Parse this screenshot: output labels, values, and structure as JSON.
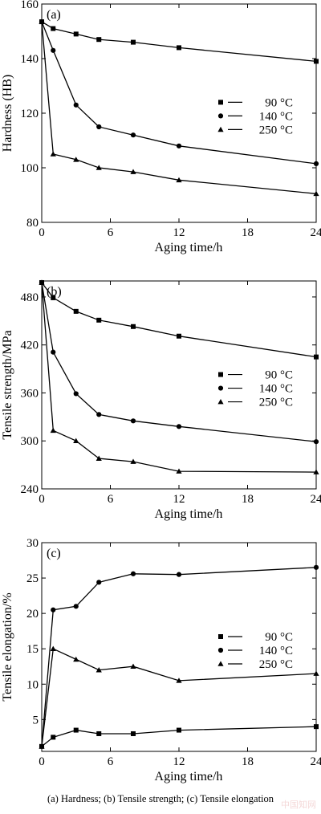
{
  "chart_data": [
    {
      "type": "line",
      "panel_label": "(a)",
      "xlabel": "Aging time/h",
      "ylabel": "Hardness (HB)",
      "xlim": [
        0,
        24
      ],
      "ylim": [
        80,
        160
      ],
      "xticks": [
        0,
        6,
        12,
        18,
        24
      ],
      "yticks": [
        80,
        100,
        120,
        140,
        160
      ],
      "grid": false,
      "legend_position": "right-middle",
      "series": [
        {
          "name": "90 °C",
          "marker": "square",
          "x": [
            0,
            1,
            3,
            5,
            8,
            12,
            24
          ],
          "values": [
            153.5,
            151,
            149,
            147,
            146,
            144,
            139
          ]
        },
        {
          "name": "140 °C",
          "marker": "circle",
          "x": [
            0,
            1,
            3,
            5,
            8,
            12,
            24
          ],
          "values": [
            153.5,
            143,
            123,
            115,
            112,
            108,
            101.5
          ]
        },
        {
          "name": "250 °C",
          "marker": "triangle",
          "x": [
            0,
            1,
            3,
            5,
            8,
            12,
            24
          ],
          "values": [
            153.5,
            105,
            103,
            100,
            98.5,
            95.5,
            90.5
          ]
        }
      ]
    },
    {
      "type": "line",
      "panel_label": "(b)",
      "xlabel": "Aging time/h",
      "ylabel": "Tensile strength/MPa",
      "xlim": [
        0,
        24
      ],
      "ylim": [
        240,
        500
      ],
      "xticks": [
        0,
        6,
        12,
        18,
        24
      ],
      "yticks": [
        240,
        300,
        360,
        420,
        480
      ],
      "grid": false,
      "legend_position": "right-middle",
      "series": [
        {
          "name": "90 °C",
          "marker": "square",
          "x": [
            0,
            1,
            3,
            5,
            8,
            12,
            24
          ],
          "values": [
            498,
            479,
            462,
            451,
            443,
            431,
            405
          ]
        },
        {
          "name": "140 °C",
          "marker": "circle",
          "x": [
            0,
            1,
            3,
            5,
            8,
            12,
            24
          ],
          "values": [
            498,
            411,
            359,
            333,
            325,
            318,
            299
          ]
        },
        {
          "name": "250 °C",
          "marker": "triangle",
          "x": [
            0,
            1,
            3,
            5,
            8,
            12,
            24
          ],
          "values": [
            498,
            313,
            300,
            278,
            274,
            262,
            261
          ]
        }
      ]
    },
    {
      "type": "line",
      "panel_label": "(c)",
      "xlabel": "Aging time/h",
      "ylabel": "Tensile elongation/%",
      "xlim": [
        0,
        24
      ],
      "ylim": [
        0.5,
        30
      ],
      "xticks": [
        0,
        6,
        12,
        18,
        24
      ],
      "yticks": [
        5,
        10,
        15,
        20,
        25,
        30
      ],
      "grid": false,
      "legend_position": "right-middle",
      "series": [
        {
          "name": "90 °C",
          "marker": "square",
          "x": [
            0,
            1,
            3,
            5,
            8,
            12,
            24
          ],
          "values": [
            1.2,
            2.5,
            3.5,
            3.0,
            3.0,
            3.5,
            4.0
          ]
        },
        {
          "name": "140 °C",
          "marker": "circle",
          "x": [
            0,
            1,
            3,
            5,
            8,
            12,
            24
          ],
          "values": [
            1.2,
            20.5,
            21.0,
            24.4,
            25.6,
            25.5,
            26.5
          ]
        },
        {
          "name": "250 °C",
          "marker": "triangle",
          "x": [
            0,
            1,
            3,
            5,
            8,
            12,
            24
          ],
          "values": [
            1.2,
            15.0,
            13.5,
            12.0,
            12.5,
            10.5,
            11.5
          ]
        }
      ]
    }
  ],
  "caption": "(a)  Hardness;  (b) Tensile strength; (c) Tensile elongation",
  "watermark": "中国知网"
}
